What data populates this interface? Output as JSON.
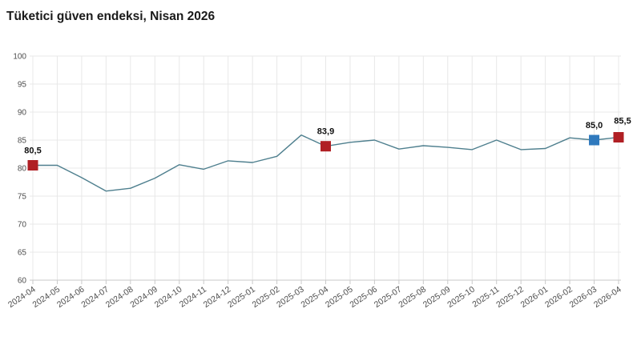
{
  "chart_data": {
    "type": "line",
    "title": "Tüketici güven endeksi, Nisan 2026",
    "x": [
      "2024-04",
      "2024-05",
      "2024-06",
      "2024-07",
      "2024-08",
      "2024-09",
      "2024-10",
      "2024-11",
      "2024-12",
      "2025-01",
      "2025-02",
      "2025-03",
      "2025-04",
      "2025-05",
      "2025-06",
      "2025-07",
      "2025-08",
      "2025-09",
      "2025-10",
      "2025-11",
      "2025-12",
      "2026-01",
      "2026-02",
      "2026-03",
      "2026-04"
    ],
    "values": [
      80.5,
      80.5,
      78.3,
      75.9,
      76.4,
      78.2,
      80.6,
      79.8,
      81.3,
      81.0,
      82.1,
      85.9,
      83.9,
      84.6,
      85.0,
      83.4,
      84.0,
      83.7,
      83.3,
      85.0,
      83.3,
      83.5,
      85.4,
      85.0,
      85.5
    ],
    "ylim": [
      60,
      100
    ],
    "yticks": [
      60,
      65,
      70,
      75,
      80,
      85,
      90,
      95,
      100
    ],
    "grid": true,
    "legend": "none",
    "line_color": "#4e7f8e",
    "highlighted_points": [
      {
        "x": "2024-04",
        "value": 80.5,
        "label": "80,5",
        "marker": "square",
        "color": "#b01f24"
      },
      {
        "x": "2025-04",
        "value": 83.9,
        "label": "83,9",
        "marker": "square",
        "color": "#b01f24"
      },
      {
        "x": "2026-03",
        "value": 85.0,
        "label": "85,0",
        "marker": "square",
        "color": "#2f79bd"
      },
      {
        "x": "2026-04",
        "value": 85.5,
        "label": "85,5",
        "marker": "square",
        "color": "#b01f24"
      }
    ]
  },
  "colors": {
    "background": "#ffffff",
    "grid": "#e8e8e8",
    "axis": "#c9c9c9",
    "tick_label": "#4d4d4d",
    "point_label": "#111111",
    "title": "#1a1a1a"
  }
}
